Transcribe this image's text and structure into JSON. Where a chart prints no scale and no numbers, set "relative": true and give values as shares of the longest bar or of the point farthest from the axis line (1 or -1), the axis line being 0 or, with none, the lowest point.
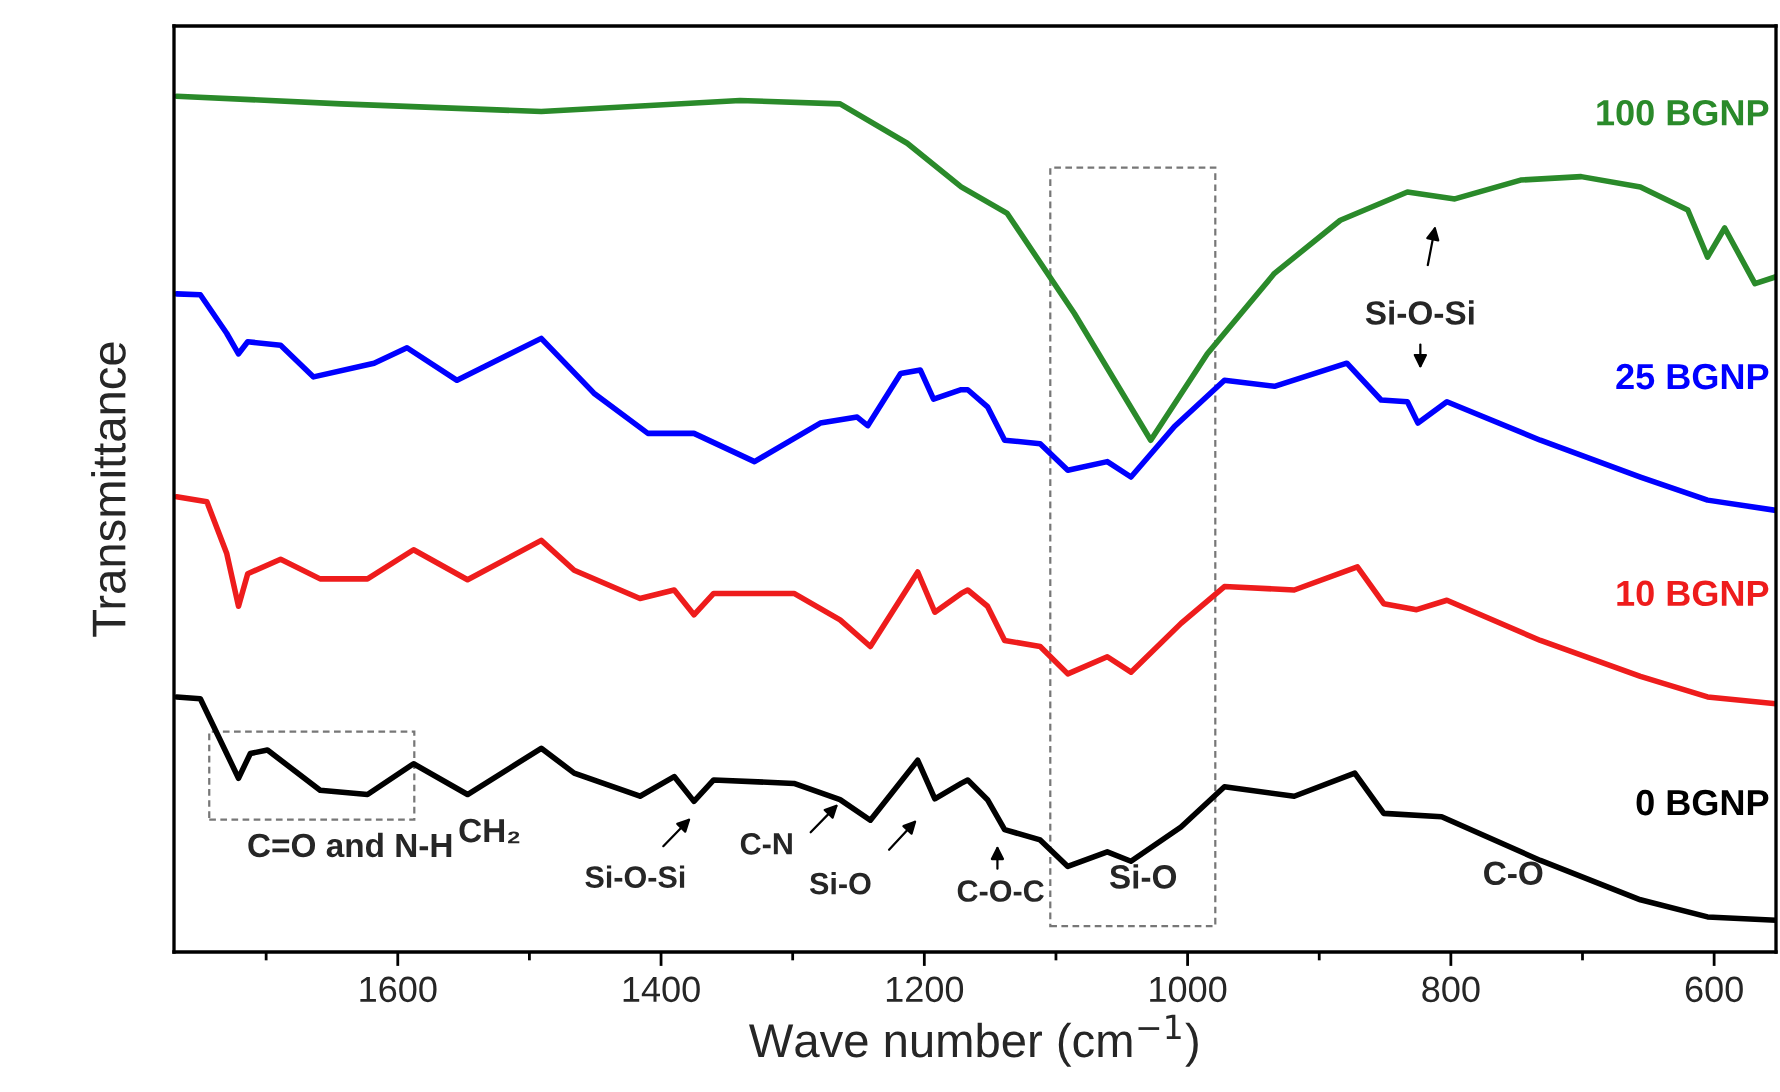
{
  "chart_data": {
    "type": "line",
    "relative": true,
    "xlabel": "Wave number (cm$^{−1}$)",
    "ylabel": "Transmittance",
    "xlim": [
      1770,
      553
    ],
    "xticks": [
      {
        "value": 1700,
        "label": null
      },
      1600,
      {
        "value": 1500,
        "label": null
      },
      1400,
      {
        "value": 1300,
        "label": null
      },
      1200,
      {
        "value": 1100,
        "label": null
      },
      1000,
      {
        "value": 900,
        "label": null
      },
      800,
      {
        "value": 700,
        "label": null
      },
      600
    ],
    "tick_labels": "x",
    "grid": false,
    "marker": "none",
    "line_style": "solid",
    "annotations": [
      "C=O and N-H",
      "CH₂",
      "Si-O-Si",
      "C-N",
      "Si-O",
      "C-O-C",
      "Si-O",
      "C-O",
      "Si-O-Si"
    ],
    "series": [
      {
        "name": "100 BGNP",
        "color": "#2a8a2a",
        "x": [
          1768,
          1643,
          1491,
          1340,
          1264,
          1213,
          1172,
          1137,
          1086,
          1028,
          985,
          934,
          884,
          833,
          797,
          747,
          701,
          656,
          620,
          605,
          592,
          569,
          553
        ],
        "values": [
          1.0,
          0.991,
          0.982,
          0.995,
          0.991,
          0.945,
          0.894,
          0.863,
          0.746,
          0.598,
          0.699,
          0.793,
          0.855,
          0.888,
          0.88,
          0.902,
          0.906,
          0.894,
          0.867,
          0.812,
          0.846,
          0.781,
          0.789
        ]
      },
      {
        "name": "25 BGNP",
        "color": "#0000ff",
        "x": [
          1768,
          1750,
          1730,
          1721,
          1714,
          1689,
          1664,
          1618,
          1593,
          1555,
          1491,
          1451,
          1410,
          1375,
          1329,
          1279,
          1251,
          1243,
          1218,
          1203,
          1193,
          1172,
          1167,
          1152,
          1139,
          1112,
          1091,
          1061,
          1043,
          1010,
          972,
          934,
          879,
          853,
          833,
          825,
          803,
          732,
          656,
          605,
          553
        ],
        "values": [
          0.769,
          0.768,
          0.723,
          0.699,
          0.713,
          0.709,
          0.672,
          0.688,
          0.706,
          0.668,
          0.717,
          0.653,
          0.606,
          0.606,
          0.573,
          0.618,
          0.625,
          0.615,
          0.676,
          0.68,
          0.646,
          0.657,
          0.657,
          0.637,
          0.598,
          0.594,
          0.563,
          0.573,
          0.555,
          0.614,
          0.668,
          0.661,
          0.688,
          0.645,
          0.643,
          0.618,
          0.643,
          0.598,
          0.555,
          0.528,
          0.516
        ]
      },
      {
        "name": "10 BGNP",
        "color": "#ee1c1c",
        "x": [
          1768,
          1745,
          1730,
          1721,
          1714,
          1689,
          1659,
          1623,
          1588,
          1547,
          1491,
          1466,
          1416,
          1390,
          1375,
          1360,
          1299,
          1264,
          1241,
          1205,
          1192,
          1172,
          1167,
          1152,
          1139,
          1112,
          1091,
          1061,
          1043,
          1005,
          972,
          919,
          871,
          851,
          826,
          803,
          732,
          656,
          605,
          553
        ],
        "values": [
          0.532,
          0.526,
          0.466,
          0.404,
          0.442,
          0.459,
          0.436,
          0.436,
          0.47,
          0.435,
          0.481,
          0.446,
          0.413,
          0.423,
          0.394,
          0.419,
          0.419,
          0.388,
          0.357,
          0.444,
          0.397,
          0.419,
          0.423,
          0.404,
          0.364,
          0.357,
          0.325,
          0.345,
          0.327,
          0.384,
          0.427,
          0.423,
          0.45,
          0.407,
          0.4,
          0.411,
          0.364,
          0.322,
          0.298,
          0.29
        ]
      },
      {
        "name": "0 BGNP",
        "color": "#000000",
        "x": [
          1768,
          1750,
          1730,
          1721,
          1712,
          1699,
          1659,
          1623,
          1588,
          1547,
          1491,
          1466,
          1416,
          1390,
          1375,
          1360,
          1299,
          1264,
          1241,
          1205,
          1192,
          1172,
          1167,
          1152,
          1139,
          1112,
          1091,
          1061,
          1043,
          1005,
          972,
          919,
          873,
          851,
          807,
          732,
          656,
          605,
          553
        ],
        "values": [
          0.298,
          0.296,
          0.232,
          0.203,
          0.232,
          0.236,
          0.189,
          0.184,
          0.22,
          0.184,
          0.238,
          0.209,
          0.182,
          0.205,
          0.176,
          0.201,
          0.197,
          0.178,
          0.154,
          0.224,
          0.179,
          0.197,
          0.201,
          0.178,
          0.143,
          0.131,
          0.1,
          0.117,
          0.106,
          0.146,
          0.193,
          0.182,
          0.209,
          0.162,
          0.158,
          0.107,
          0.061,
          0.041,
          0.037
        ]
      }
    ]
  }
}
